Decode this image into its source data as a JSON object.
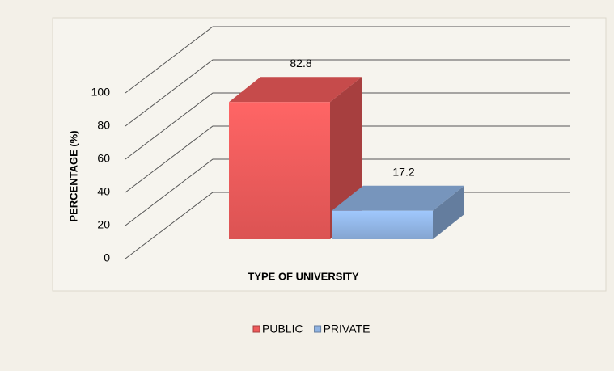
{
  "chart_data": {
    "type": "bar3d",
    "xlabel": "TYPE OF UNIVERSITY",
    "ylabel": "PERCENTAGE (%)",
    "categories": [
      null
    ],
    "series": [
      {
        "name": "PUBLIC",
        "color": "#ee5a5a",
        "values": [
          82.8
        ]
      },
      {
        "name": "PRIVATE",
        "color": "#8fb3e2",
        "values": [
          17.2
        ]
      }
    ],
    "ylim": [
      0,
      100
    ],
    "yticks": [
      0,
      20,
      40,
      60,
      80,
      100
    ],
    "grid": true,
    "legend": "bottom"
  }
}
